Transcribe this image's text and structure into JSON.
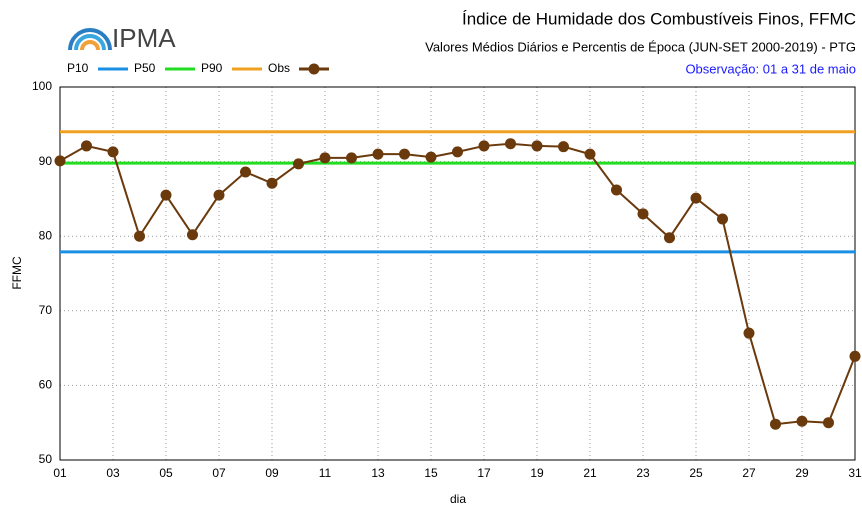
{
  "logo": "IPMA",
  "chart_data": {
    "type": "line",
    "title": "Índice de Humidade dos Combustíveis Finos, FFMC",
    "subtitle": "Valores Médios Diários e Percentis de Época (JUN-SET 2000-2019) - PTG",
    "annotation": "Observação: 01 a 31 de maio",
    "x_label": "dia",
    "y_label": "FFMC",
    "x": [
      1,
      2,
      3,
      4,
      5,
      6,
      7,
      8,
      9,
      10,
      11,
      12,
      13,
      14,
      15,
      16,
      17,
      18,
      19,
      20,
      21,
      22,
      23,
      24,
      25,
      26,
      27,
      28,
      29,
      30,
      31
    ],
    "xlim": [
      1,
      31
    ],
    "xticks": [
      {
        "value": 1,
        "label": "01"
      },
      {
        "value": 3,
        "label": "03"
      },
      {
        "value": 5,
        "label": "05"
      },
      {
        "value": 7,
        "label": "07"
      },
      {
        "value": 9,
        "label": "09"
      },
      11,
      13,
      15,
      17,
      19,
      21,
      23,
      25,
      27,
      29,
      31
    ],
    "ylim": [
      50,
      100
    ],
    "yticks": [
      50,
      60,
      70,
      80,
      90,
      100
    ],
    "grid": true,
    "series": [
      {
        "name": "P10",
        "color": "#1a8fe3",
        "values": [
          77.9,
          77.9,
          77.9,
          77.9,
          77.9,
          77.9,
          77.9,
          77.9,
          77.9,
          77.9,
          77.9,
          77.9,
          77.9,
          77.9,
          77.9,
          77.9,
          77.9,
          77.9,
          77.9,
          77.9,
          77.9,
          77.9,
          77.9,
          77.9,
          77.9,
          77.9,
          77.9,
          77.9,
          77.9,
          77.9,
          77.9
        ]
      },
      {
        "name": "P50",
        "color": "#22dd22",
        "values": [
          89.8,
          89.8,
          89.8,
          89.8,
          89.8,
          89.8,
          89.8,
          89.8,
          89.8,
          89.8,
          89.8,
          89.8,
          89.8,
          89.8,
          89.8,
          89.8,
          89.8,
          89.8,
          89.8,
          89.8,
          89.8,
          89.8,
          89.8,
          89.8,
          89.8,
          89.8,
          89.8,
          89.8,
          89.8,
          89.8,
          89.8
        ]
      },
      {
        "name": "P90",
        "color": "#f0a020",
        "values": [
          94.0,
          94.0,
          94.0,
          94.0,
          94.0,
          94.0,
          94.0,
          94.0,
          94.0,
          94.0,
          94.0,
          94.0,
          94.0,
          94.0,
          94.0,
          94.0,
          94.0,
          94.0,
          94.0,
          94.0,
          94.0,
          94.0,
          94.0,
          94.0,
          94.0,
          94.0,
          94.0,
          94.0,
          94.0,
          94.0,
          94.0
        ]
      },
      {
        "name": "Obs",
        "color": "#6b3a0c",
        "markers": true,
        "values": [
          90.1,
          92.1,
          91.3,
          80.0,
          85.5,
          80.2,
          85.5,
          88.6,
          87.1,
          89.7,
          90.5,
          90.5,
          91.0,
          91.0,
          90.6,
          91.3,
          92.1,
          92.4,
          92.1,
          92.0,
          91.0,
          86.2,
          83.0,
          79.8,
          85.1,
          82.3,
          67.0,
          54.8,
          55.2,
          55.0,
          63.9
        ]
      }
    ]
  }
}
